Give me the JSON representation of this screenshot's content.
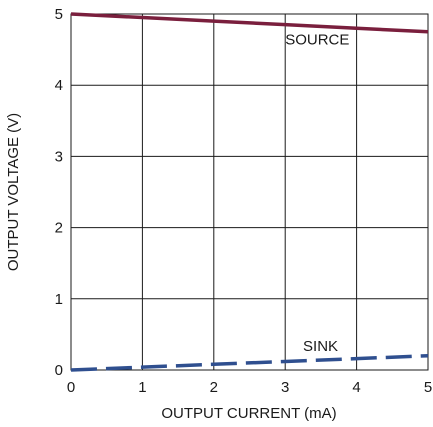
{
  "chart_data": {
    "type": "line",
    "title": "",
    "xlabel": "OUTPUT CURRENT (mA)",
    "ylabel": "OUTPUT VOLTAGE (V)",
    "xlim": [
      0,
      5
    ],
    "ylim": [
      0,
      5
    ],
    "x_ticks": [
      "0",
      "1",
      "2",
      "3",
      "4",
      "5"
    ],
    "y_ticks": [
      "0",
      "1",
      "2",
      "3",
      "4",
      "5"
    ],
    "grid": true,
    "legend": "none",
    "series": [
      {
        "name": "SOURCE",
        "style": "solid",
        "color": "#7a1f3d",
        "x": [
          0,
          1,
          2,
          3,
          4,
          5
        ],
        "y": [
          5.0,
          4.95,
          4.9,
          4.85,
          4.8,
          4.75
        ]
      },
      {
        "name": "SINK",
        "style": "dashed",
        "color": "#2f4f8f",
        "x": [
          0,
          1,
          2,
          3,
          4,
          5
        ],
        "y": [
          0.0,
          0.04,
          0.08,
          0.12,
          0.16,
          0.2
        ]
      }
    ],
    "annotations": [
      {
        "text": "SOURCE",
        "x": 3.0,
        "y": 4.57
      },
      {
        "text": "SINK",
        "x": 3.25,
        "y": 0.27
      }
    ]
  }
}
